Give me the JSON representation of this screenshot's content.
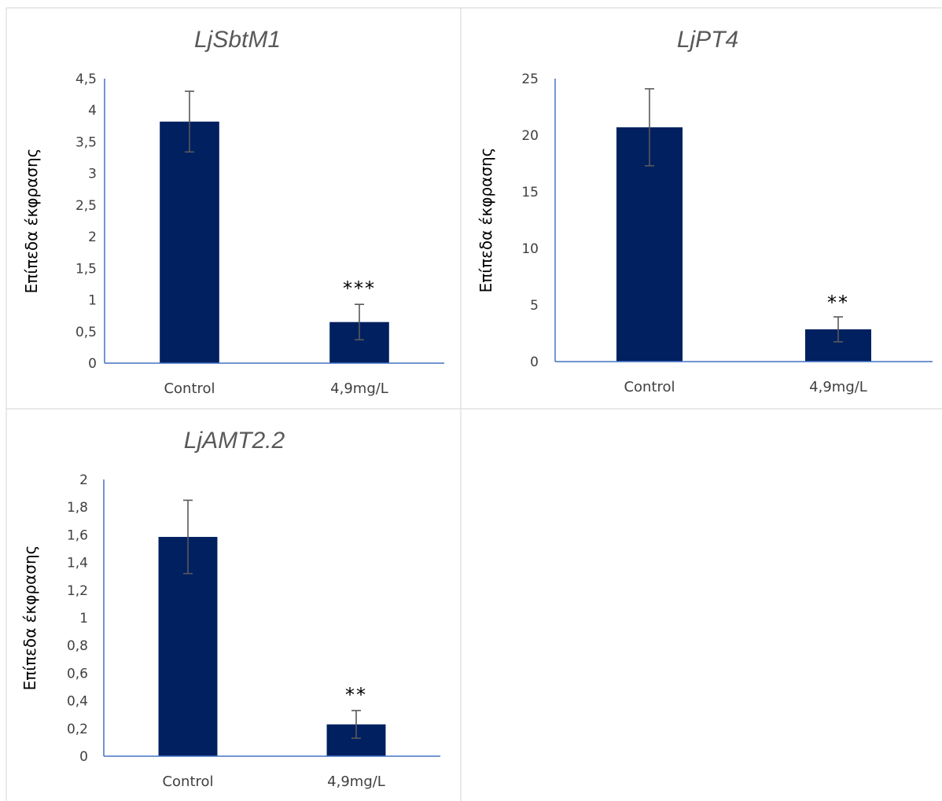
{
  "chart_data": [
    {
      "type": "bar",
      "title": "LjSbtM1",
      "ylabel": "Επίπεδα έκφρασης",
      "categories": [
        "Control",
        "4,9mg/L"
      ],
      "values": [
        3.82,
        0.65
      ],
      "errors": [
        0.48,
        0.28
      ],
      "significance": [
        "",
        "***"
      ],
      "ylim": [
        0,
        4.5
      ],
      "yticks": [
        "0",
        "0,5",
        "1",
        "1,5",
        "2",
        "2,5",
        "3",
        "3,5",
        "4",
        "4,5"
      ],
      "bar_color": "#002060",
      "axis_color": "#4472c4",
      "grid": false
    },
    {
      "type": "bar",
      "title": "LjPT4",
      "ylabel": "Επίπεδα έκφρασης",
      "categories": [
        "Control",
        "4,9mg/L"
      ],
      "values": [
        20.7,
        2.85
      ],
      "errors": [
        3.4,
        1.1
      ],
      "significance": [
        "",
        "**"
      ],
      "ylim": [
        0,
        25
      ],
      "yticks": [
        "0",
        "5",
        "10",
        "15",
        "20",
        "25"
      ],
      "bar_color": "#002060",
      "axis_color": "#4472c4",
      "grid": false
    },
    {
      "type": "bar",
      "title": "LjAMT2.2",
      "ylabel": "Επίπεδα έκφρασης",
      "categories": [
        "Control",
        "4,9mg/L"
      ],
      "values": [
        1.585,
        0.23
      ],
      "errors": [
        0.265,
        0.1
      ],
      "significance": [
        "",
        "**"
      ],
      "ylim": [
        0,
        2
      ],
      "yticks": [
        "0",
        "0,2",
        "0,4",
        "0,6",
        "0,8",
        "1",
        "1,2",
        "1,4",
        "1,6",
        "1,8",
        "2"
      ],
      "bar_color": "#002060",
      "axis_color": "#4472c4",
      "grid": false
    }
  ]
}
